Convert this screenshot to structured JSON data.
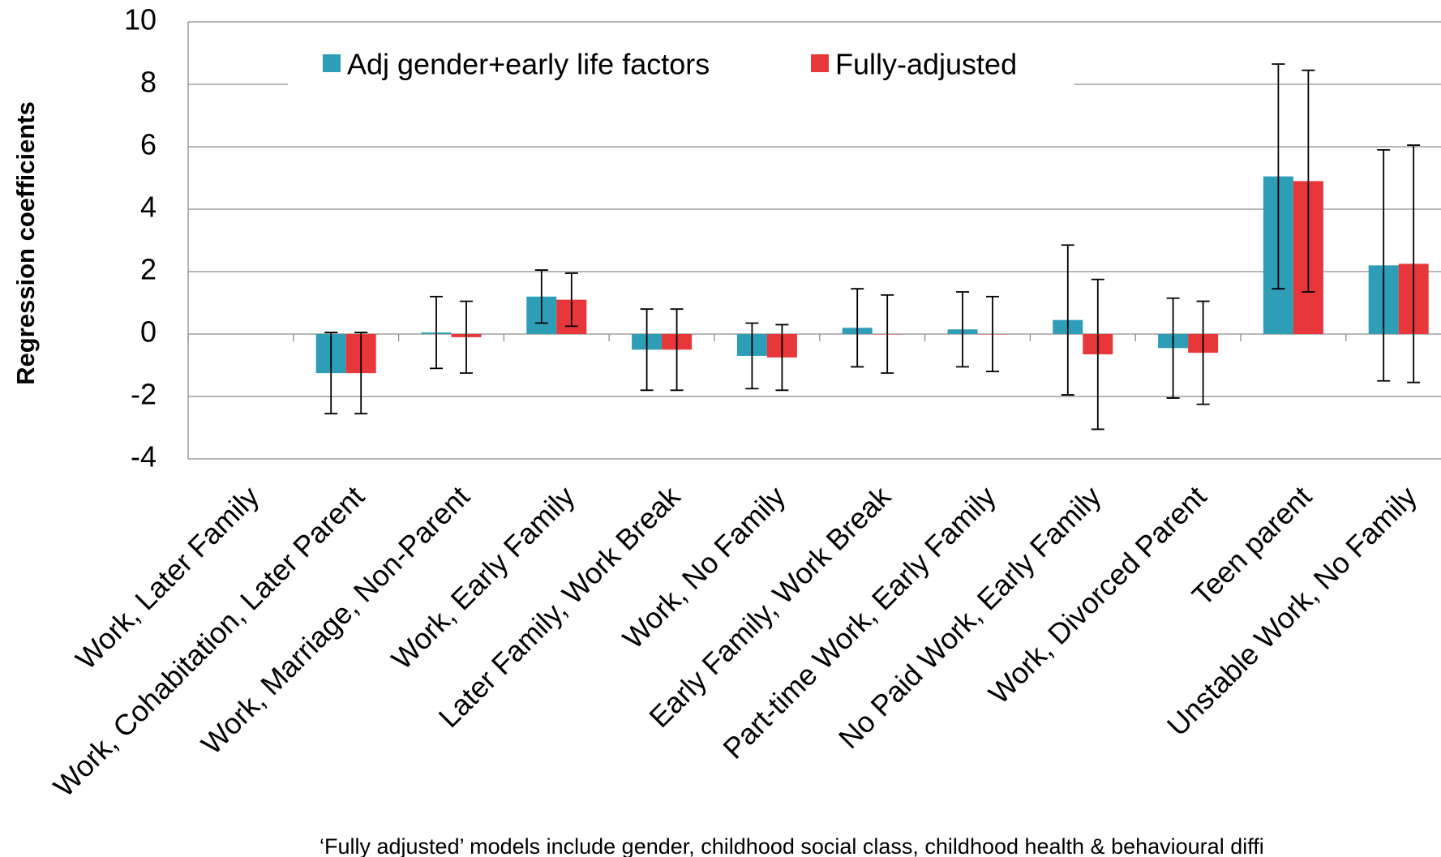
{
  "chart_data": {
    "type": "bar",
    "y_label": "Regression coefficients",
    "footnote": "‘Fully adjusted’ models include gender, childhood social class, childhood health & behavioural diffi",
    "categories": [
      "Work, Later Family",
      "Work, Cohabitation, Later Parent",
      "Work, Marriage, Non-Parent",
      "Work, Early Family",
      "Later Family, Work Break",
      "Work, No Family",
      "Early Family, Work Break",
      "Part-time Work, Early Family",
      "No Paid Work, Early Family",
      "Work, Divorced Parent",
      "Teen parent",
      "Unstable Work, No Family"
    ],
    "series": [
      {
        "name": "Adj gender+early life factors",
        "color": "#2e9db6",
        "values": [
          null,
          -1.25,
          0.05,
          1.2,
          -0.5,
          -0.7,
          0.2,
          0.15,
          0.45,
          -0.45,
          5.05,
          2.2
        ],
        "errors": [
          null,
          1.3,
          1.15,
          0.85,
          1.3,
          1.05,
          1.25,
          1.2,
          2.4,
          1.6,
          3.6,
          3.7
        ]
      },
      {
        "name": "Fully-adjusted",
        "color": "#e8373a",
        "values": [
          null,
          -1.25,
          -0.1,
          1.1,
          -0.5,
          -0.75,
          0,
          0,
          -0.65,
          -0.6,
          4.9,
          2.25
        ],
        "errors": [
          null,
          1.3,
          1.15,
          0.85,
          1.3,
          1.05,
          1.25,
          1.2,
          2.4,
          1.65,
          3.55,
          3.8
        ]
      }
    ],
    "ylim": [
      -4,
      10
    ],
    "yticks": [
      -4,
      -2,
      0,
      2,
      4,
      6,
      8,
      10
    ],
    "grid": true
  }
}
